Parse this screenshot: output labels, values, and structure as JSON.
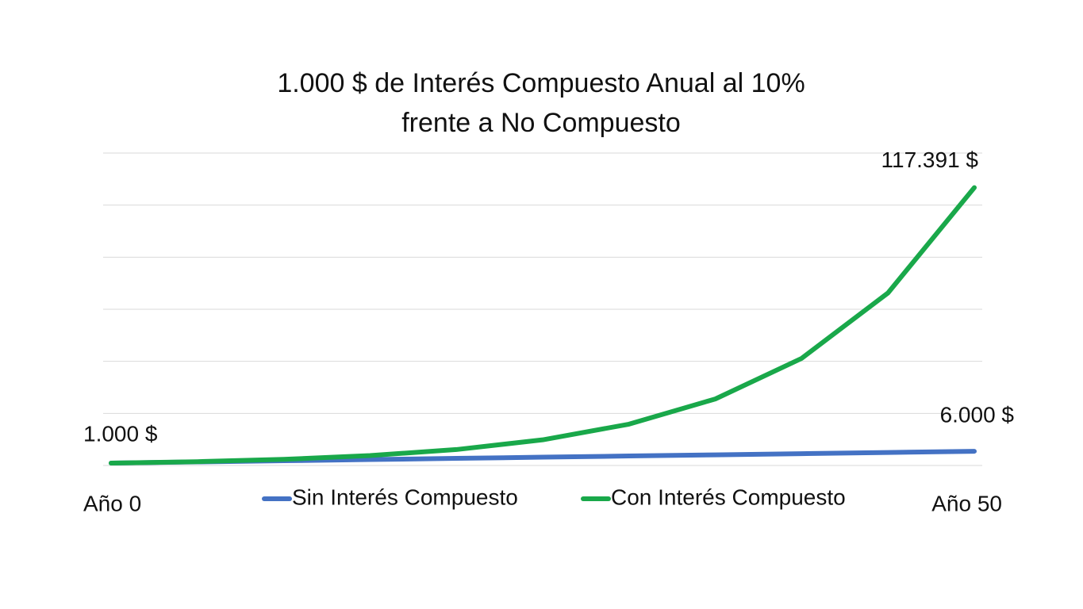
{
  "chart_data": {
    "type": "line",
    "title": "1.000 $ de Interés Compuesto Anual al 10% frente a No Compuesto",
    "x": [
      0,
      5,
      10,
      15,
      20,
      25,
      30,
      35,
      40,
      45,
      50
    ],
    "xlim": [
      0,
      50
    ],
    "xticks": [
      {
        "value": 0,
        "label": "Año 0"
      },
      {
        "value": 50,
        "label": "Año 50"
      }
    ],
    "ylim": [
      0,
      132000
    ],
    "yticks": [
      0,
      22000,
      44000,
      66000,
      88000,
      110000,
      132000
    ],
    "grid": true,
    "legend": "bottom",
    "series": [
      {
        "name": "Sin Interés Compuesto",
        "color": "#4472c4",
        "values": [
          1000,
          1500,
          2000,
          2500,
          3000,
          3500,
          4000,
          4500,
          5000,
          5500,
          6000
        ],
        "value_labels": [
          null,
          null,
          null,
          null,
          null,
          null,
          null,
          null,
          null,
          null,
          "6.000 $"
        ]
      },
      {
        "name": "Con Interés Compuesto",
        "color": "#19a84a",
        "values": [
          1000,
          1611,
          2594,
          4177,
          6727,
          10835,
          17449,
          28102,
          45259,
          72890,
          117391
        ],
        "value_labels": [
          "1.000 $",
          null,
          null,
          null,
          null,
          null,
          null,
          null,
          null,
          null,
          "117.391 $"
        ]
      }
    ]
  }
}
